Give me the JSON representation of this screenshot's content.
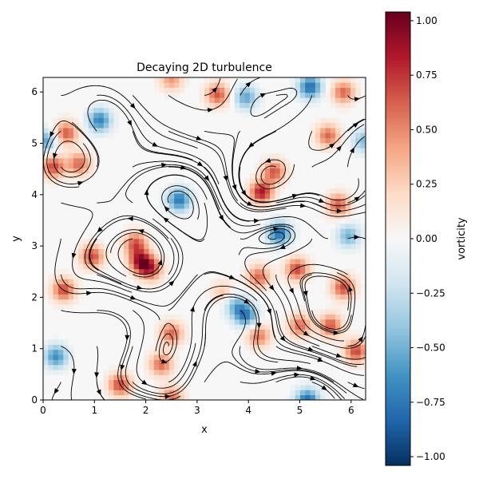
{
  "chart_data": {
    "type": "heatmap",
    "title": "Decaying 2D turbulence",
    "xlabel": "x",
    "ylabel": "y",
    "xlim": [
      0,
      6.283
    ],
    "ylim": [
      0,
      6.283
    ],
    "x_ticks": [
      0,
      1,
      2,
      3,
      4,
      5,
      6
    ],
    "x_tick_labels": [
      "0",
      "1",
      "2",
      "3",
      "4",
      "5",
      "6"
    ],
    "y_ticks": [
      0,
      1,
      2,
      3,
      4,
      5,
      6
    ],
    "y_tick_labels": [
      "0",
      "1",
      "2",
      "3",
      "4",
      "5",
      "6"
    ],
    "grid": false,
    "overlay": "streamlines",
    "colormap": "RdBu_r",
    "colorbar": {
      "label": "vorticity",
      "range": [
        -1.04,
        1.04
      ],
      "ticks": [
        1.0,
        0.75,
        0.5,
        0.25,
        0.0,
        -0.25,
        -0.5,
        -0.75,
        -1.0
      ],
      "tick_labels": [
        "1.00",
        "0.75",
        "0.50",
        "0.25",
        "0.00",
        "−0.25",
        "−0.50",
        "−0.75",
        "−1.00"
      ]
    },
    "vortices": [
      {
        "x": 2.5,
        "y": 6.25,
        "vorticity": 0.45
      },
      {
        "x": 3.4,
        "y": 5.95,
        "vorticity": 0.65
      },
      {
        "x": 3.95,
        "y": 5.9,
        "vorticity": -0.55
      },
      {
        "x": 5.2,
        "y": 6.1,
        "vorticity": -0.8
      },
      {
        "x": 5.85,
        "y": 6.0,
        "vorticity": 0.6
      },
      {
        "x": 1.1,
        "y": 5.45,
        "vorticity": -0.7
      },
      {
        "x": 0.05,
        "y": 5.05,
        "vorticity": -0.55
      },
      {
        "x": 0.45,
        "y": 5.2,
        "vorticity": 0.65
      },
      {
        "x": 5.55,
        "y": 5.15,
        "vorticity": 0.6
      },
      {
        "x": 6.25,
        "y": 5.05,
        "vorticity": -0.45
      },
      {
        "x": 0.2,
        "y": 4.55,
        "vorticity": 0.7
      },
      {
        "x": 0.7,
        "y": 4.6,
        "vorticity": 0.6
      },
      {
        "x": 4.5,
        "y": 4.45,
        "vorticity": 0.65
      },
      {
        "x": 4.25,
        "y": 4.05,
        "vorticity": 0.85
      },
      {
        "x": 2.65,
        "y": 3.9,
        "vorticity": -0.75
      },
      {
        "x": 5.75,
        "y": 3.8,
        "vorticity": 0.65
      },
      {
        "x": 4.6,
        "y": 3.25,
        "vorticity": -0.8
      },
      {
        "x": 5.95,
        "y": 3.2,
        "vorticity": -0.5
      },
      {
        "x": 1.8,
        "y": 3.05,
        "vorticity": 0.65
      },
      {
        "x": 1.9,
        "y": 2.7,
        "vorticity": 0.85
      },
      {
        "x": 2.1,
        "y": 2.55,
        "vorticity": 0.65
      },
      {
        "x": 0.95,
        "y": 2.8,
        "vorticity": 0.7
      },
      {
        "x": 4.2,
        "y": 2.4,
        "vorticity": 0.6
      },
      {
        "x": 4.95,
        "y": 2.55,
        "vorticity": 0.7
      },
      {
        "x": 5.85,
        "y": 2.2,
        "vorticity": 0.7
      },
      {
        "x": 0.4,
        "y": 2.15,
        "vorticity": 0.7
      },
      {
        "x": 3.5,
        "y": 2.1,
        "vorticity": 0.3
      },
      {
        "x": 3.75,
        "y": 1.85,
        "vorticity": -0.45
      },
      {
        "x": 3.95,
        "y": 1.65,
        "vorticity": -0.7
      },
      {
        "x": 5.0,
        "y": 1.45,
        "vorticity": 0.6
      },
      {
        "x": 5.6,
        "y": 1.45,
        "vorticity": 0.65
      },
      {
        "x": 4.2,
        "y": 1.25,
        "vorticity": 0.55
      },
      {
        "x": 2.5,
        "y": 1.3,
        "vorticity": 0.6
      },
      {
        "x": 6.1,
        "y": 0.95,
        "vorticity": 0.7
      },
      {
        "x": 0.25,
        "y": 0.85,
        "vorticity": -0.65
      },
      {
        "x": 2.3,
        "y": 0.7,
        "vorticity": 0.6
      },
      {
        "x": 1.5,
        "y": 0.3,
        "vorticity": 0.7
      },
      {
        "x": 2.5,
        "y": 0.05,
        "vorticity": 0.55
      },
      {
        "x": 5.15,
        "y": 0.0,
        "vorticity": -0.8
      }
    ]
  }
}
